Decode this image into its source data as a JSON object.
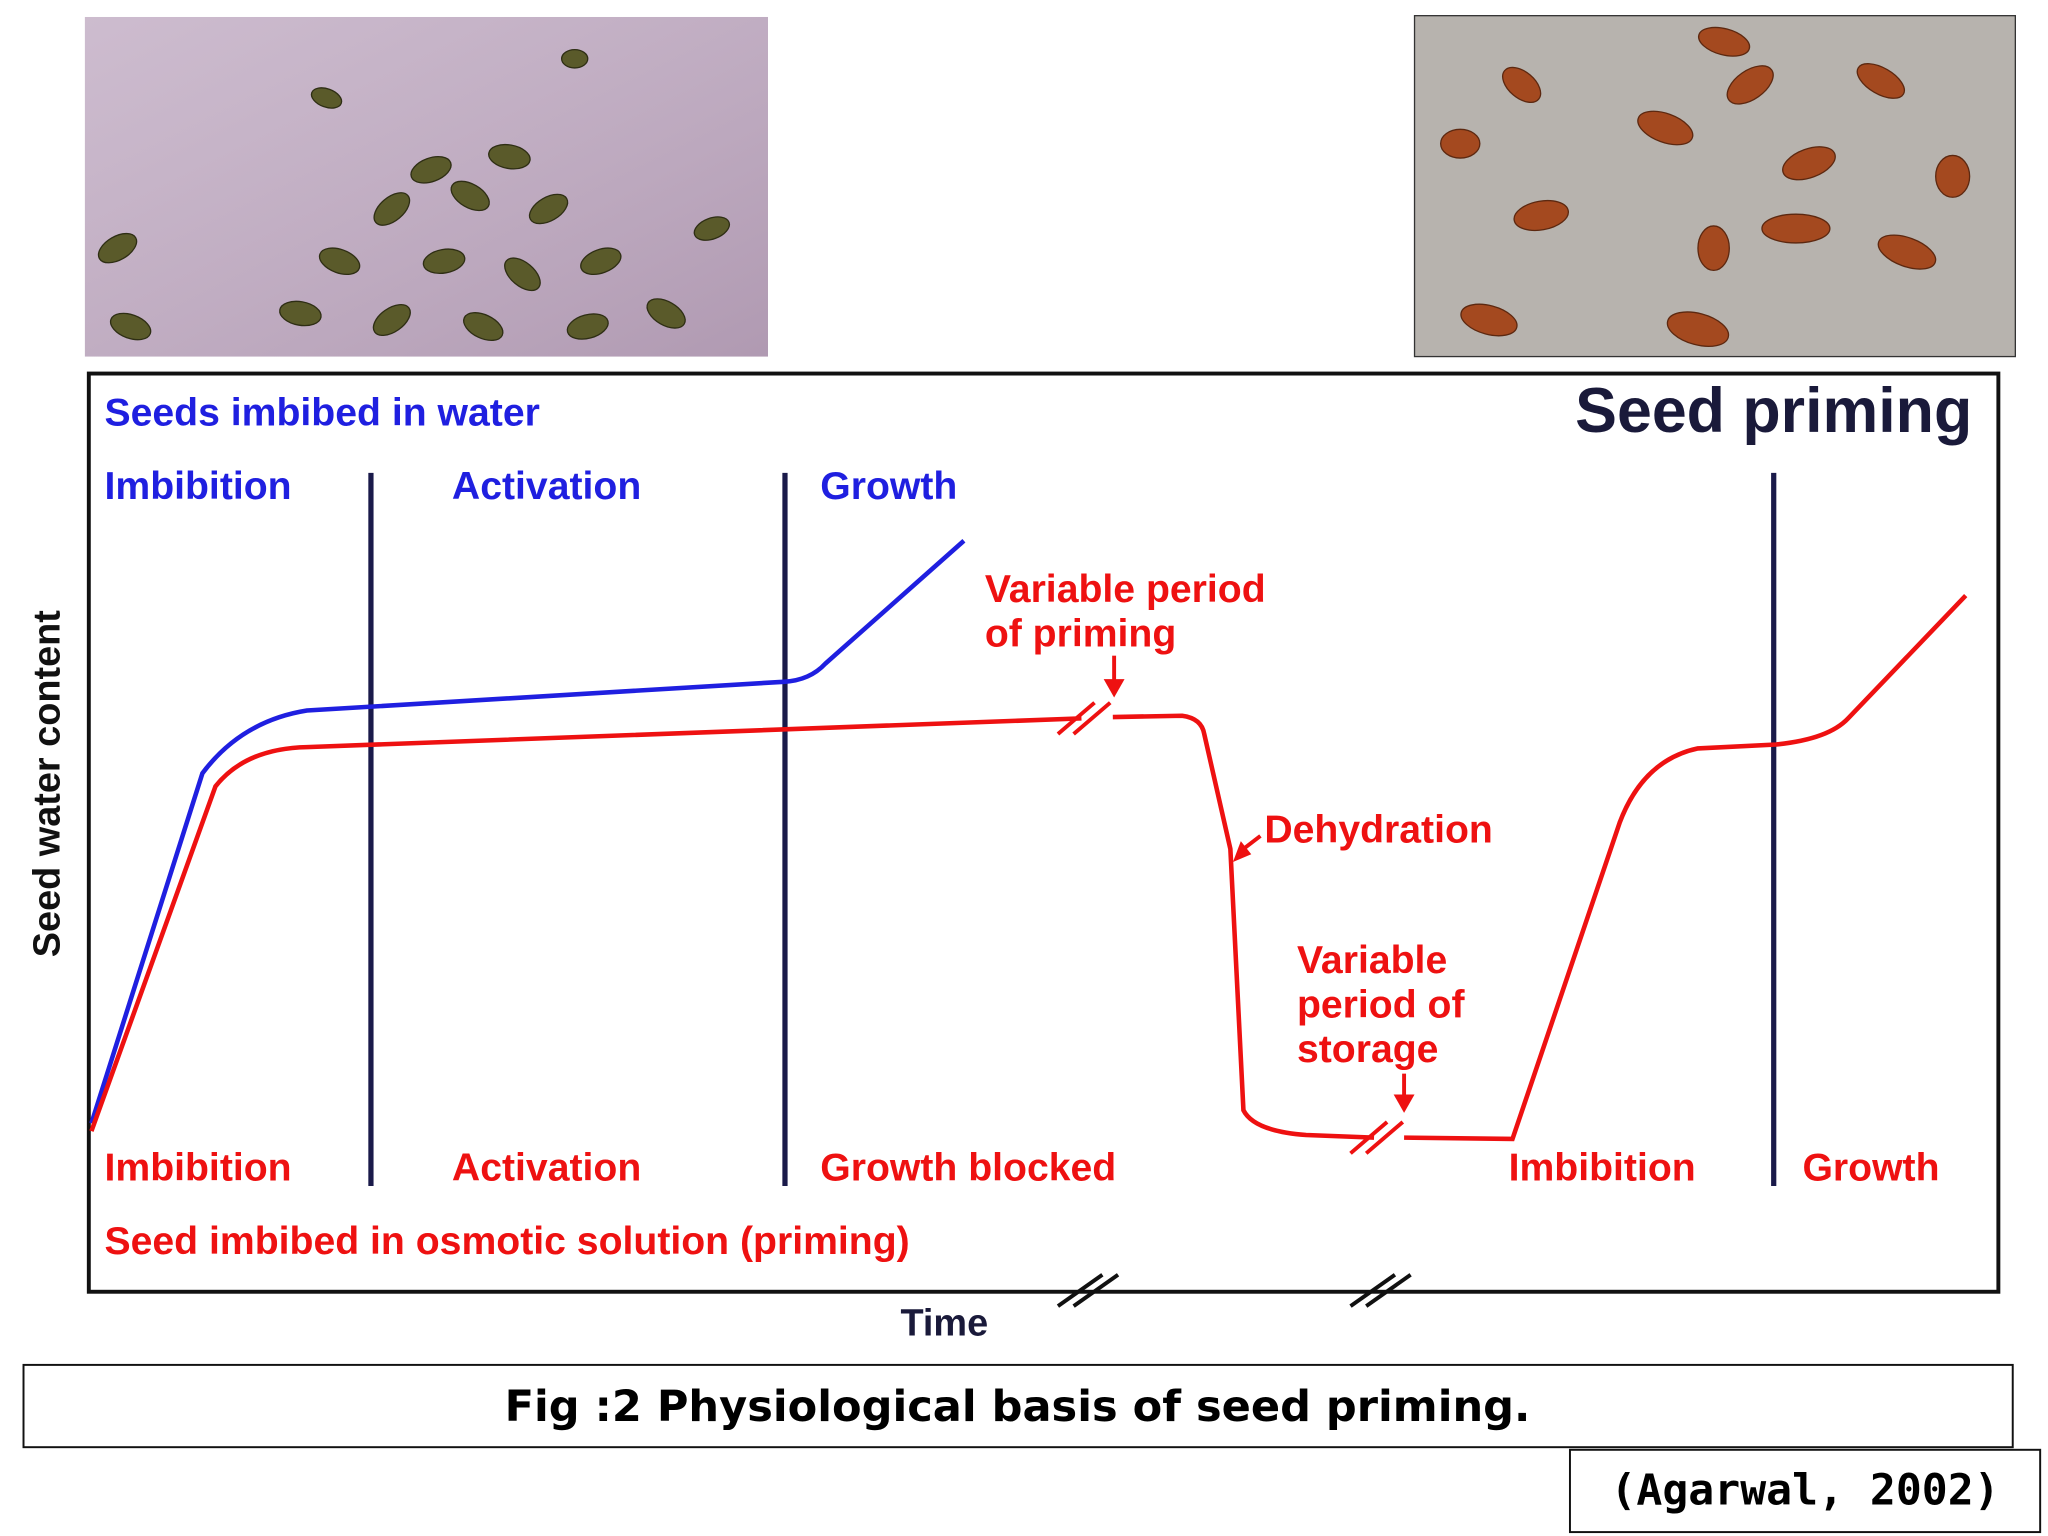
{
  "figure": {
    "title": "Seed priming",
    "y_axis_label": "Seed water content",
    "x_axis_label": "Time",
    "water": {
      "heading": "Seeds imbibed in water",
      "phases": [
        "Imbibition",
        "Activation",
        "Growth"
      ]
    },
    "priming": {
      "heading": "Seed imbibed in osmotic solution (priming)",
      "phases": [
        "Imbibition",
        "Activation",
        "Growth blocked",
        "Imbibition",
        "Growth"
      ]
    },
    "annotations": [
      [
        "Variable period",
        "of priming"
      ],
      [
        "Dehydration"
      ],
      [
        "Variable",
        "period of",
        "storage"
      ]
    ]
  },
  "caption": "Fig :2 Physiological basis of seed priming.",
  "citation": "(Agarwal, 2002)"
}
